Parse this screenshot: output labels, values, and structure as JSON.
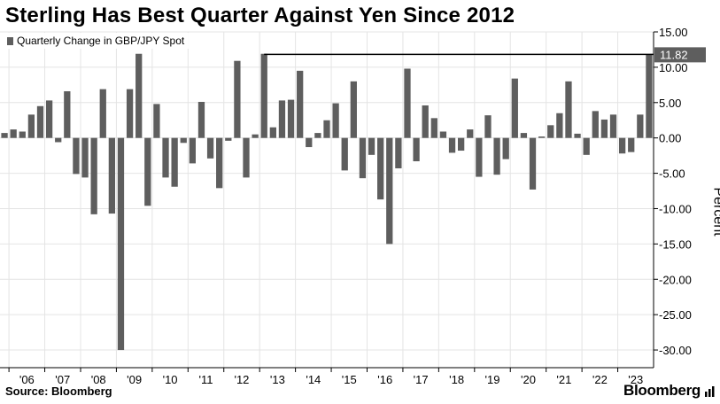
{
  "title": "Sterling Has Best Quarter Against Yen Since 2012",
  "source": "Source: Bloomberg",
  "brand": "Bloomberg",
  "colors": {
    "bar": "#5e5e5e",
    "grid": "#e4e4e4",
    "axis": "#000000"
  },
  "chart_data": {
    "type": "bar",
    "title": "Sterling Has Best Quarter Against Yen Since 2012",
    "ylabel": "Percent",
    "ylim": [
      -32.5,
      15
    ],
    "yticks": [
      15,
      10,
      5,
      0,
      -5,
      -10,
      -15,
      -20,
      -25,
      -30
    ],
    "ytick_labels": [
      "15.00",
      "10.00",
      "5.00",
      "0.00",
      "-5.00",
      "-10.00",
      "-15.00",
      "-20.00",
      "-25.00",
      "-30.00"
    ],
    "year_labels": [
      "'06",
      "'07",
      "'08",
      "'09",
      "'10",
      "'11",
      "'12",
      "'13",
      "'14",
      "'15",
      "'16",
      "'17",
      "'18",
      "'19",
      "'20",
      "'21",
      "'22",
      "'23"
    ],
    "grid": true,
    "legend_position": "top-left",
    "series": [
      {
        "name": "Quarterly Change in GBP/JPY Spot",
        "values": [
          0.7,
          1.2,
          0.9,
          3.3,
          4.5,
          5.3,
          -0.6,
          6.6,
          -5.1,
          -5.6,
          -10.8,
          6.9,
          -10.7,
          -30.0,
          6.9,
          11.9,
          -9.6,
          4.8,
          -5.6,
          -6.9,
          -0.7,
          -3.6,
          5.1,
          -2.9,
          -7.1,
          -0.4,
          10.9,
          -5.6,
          0.5,
          11.9,
          1.5,
          5.3,
          5.4,
          9.5,
          -1.3,
          0.7,
          2.5,
          4.9,
          -4.6,
          8.0,
          -5.7,
          -2.4,
          -8.7,
          -15.0,
          -4.3,
          9.8,
          -3.3,
          4.6,
          2.8,
          0.9,
          -2.1,
          -1.8,
          1.2,
          -5.5,
          3.2,
          -5.2,
          -3.0,
          8.4,
          0.7,
          -7.3,
          0.2,
          1.8,
          3.5,
          8.0,
          0.6,
          -2.4,
          3.8,
          2.6,
          3.3,
          -2.2,
          -2.0,
          3.3,
          11.82
        ]
      }
    ],
    "highlight": {
      "label": "11.82",
      "value": 11.82
    }
  }
}
